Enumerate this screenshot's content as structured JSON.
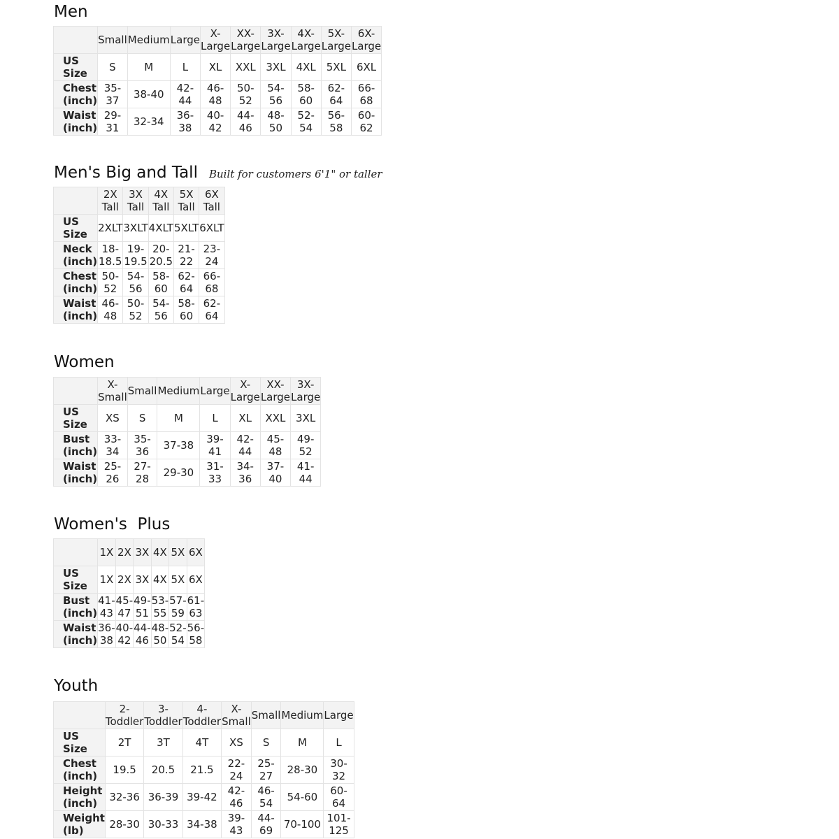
{
  "tables": [
    {
      "id": "men",
      "title": "Men",
      "subtitle": "",
      "columns": [
        "Small",
        "Medium",
        "Large",
        "X-Large",
        "XX-Large",
        "3X-Large",
        "4X-Large",
        "5X-Large",
        "6X-Large"
      ],
      "rows": [
        {
          "label": "US Size",
          "values": [
            "S",
            "M",
            "L",
            "XL",
            "XXL",
            "3XL",
            "4XL",
            "5XL",
            "6XL"
          ]
        },
        {
          "label": "Chest (inch)",
          "values": [
            "35-37",
            "38-40",
            "42-44",
            "46-48",
            "50-52",
            "54-56",
            "58-60",
            "62-64",
            "66-68"
          ]
        },
        {
          "label": "Waist (inch)",
          "values": [
            "29-31",
            "32-34",
            "36-38",
            "40-42",
            "44-46",
            "48-50",
            "52-54",
            "56-58",
            "60-62"
          ]
        }
      ]
    },
    {
      "id": "mens-big-and-tall",
      "title": "Men's Big and Tall",
      "subtitle": "Built for customers 6'1\" or taller",
      "columns": [
        "2X Tall",
        "3X Tall",
        "4X Tall",
        "5X Tall",
        "6X Tall"
      ],
      "rows": [
        {
          "label": "US Size",
          "values": [
            "2XLT",
            "3XLT",
            "4XLT",
            "5XLT",
            "6XLT"
          ]
        },
        {
          "label": "Neck (inch)",
          "values": [
            "18-18.5",
            "19-19.5",
            "20-20.5",
            "21-22",
            "23-24"
          ]
        },
        {
          "label": "Chest (inch)",
          "values": [
            "50-52",
            "54-56",
            "58-60",
            "62-64",
            "66-68"
          ]
        },
        {
          "label": "Waist (inch)",
          "values": [
            "46-48",
            "50-52",
            "54-56",
            "58-60",
            "62-64"
          ]
        }
      ]
    },
    {
      "id": "women",
      "title": "Women",
      "subtitle": "",
      "columns": [
        "X-Small",
        "Small",
        "Medium",
        "Large",
        "X-Large",
        "XX-Large",
        "3X-Large"
      ],
      "rows": [
        {
          "label": "US Size",
          "values": [
            "XS",
            "S",
            "M",
            "L",
            "XL",
            "XXL",
            "3XL"
          ]
        },
        {
          "label": "Bust (inch)",
          "values": [
            "33-34",
            "35-36",
            "37-38",
            "39-41",
            "42-44",
            "45-48",
            "49-52"
          ]
        },
        {
          "label": "Waist (inch)",
          "values": [
            "25-26",
            "27-28",
            "29-30",
            "31-33",
            "34-36",
            "37-40",
            "41-44"
          ]
        }
      ]
    },
    {
      "id": "womens-plus",
      "title": "Women's  Plus",
      "subtitle": "",
      "columns": [
        "1X",
        "2X",
        "3X",
        "4X",
        "5X",
        "6X"
      ],
      "rows": [
        {
          "label": "US Size",
          "values": [
            "1X",
            "2X",
            "3X",
            "4X",
            "5X",
            "6X"
          ]
        },
        {
          "label": "Bust (inch)",
          "values": [
            "41-43",
            "45-47",
            "49-51",
            "53-55",
            "57-59",
            "61-63"
          ]
        },
        {
          "label": "Waist (inch)",
          "values": [
            "36-38",
            "40-42",
            "44-46",
            "48-50",
            "52-54",
            "56-58"
          ]
        }
      ]
    },
    {
      "id": "youth",
      "title": "Youth",
      "subtitle": "",
      "columns": [
        "2-Toddler",
        "3-Toddler",
        "4-Toddler",
        "X-Small",
        "Small",
        "Medium",
        "Large"
      ],
      "rows": [
        {
          "label": "US Size",
          "values": [
            "2T",
            "3T",
            "4T",
            "XS",
            "S",
            "M",
            "L"
          ]
        },
        {
          "label": "Chest (inch)",
          "values": [
            "19.5",
            "20.5",
            "21.5",
            "22-24",
            "25-27",
            "28-30",
            "30-32"
          ]
        },
        {
          "label": "Height (inch)",
          "values": [
            "32-36",
            "36-39",
            "39-42",
            "42-46",
            "46-54",
            "54-60",
            "60-64"
          ]
        },
        {
          "label": "Weight (lb)",
          "values": [
            "28-30",
            "30-33",
            "34-38",
            "39-43",
            "44-69",
            "70-100",
            "101-125"
          ]
        }
      ]
    }
  ]
}
